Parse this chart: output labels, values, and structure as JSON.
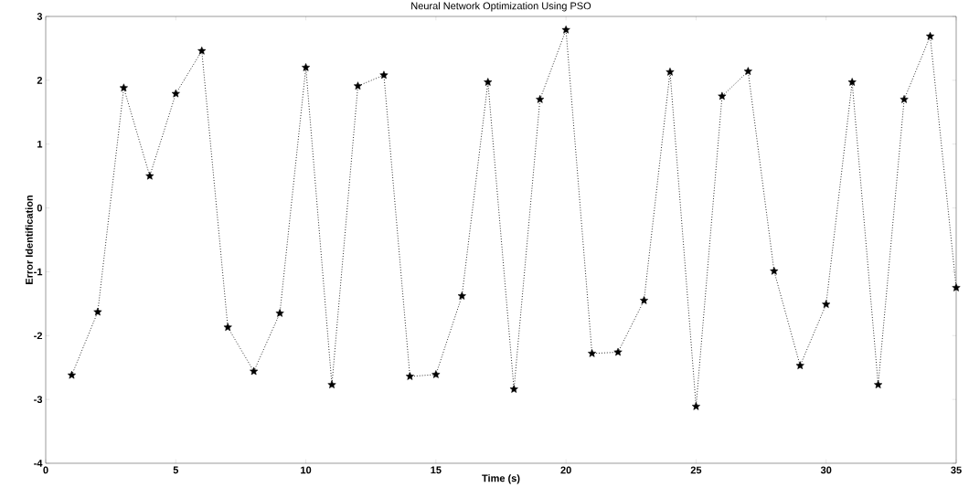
{
  "chart_data": {
    "type": "line",
    "title": "Neural Network Optimization Using PSO",
    "xlabel": "Time (s)",
    "ylabel": "Error Identification",
    "x": [
      1,
      2,
      3,
      4,
      5,
      6,
      7,
      8,
      9,
      10,
      11,
      12,
      13,
      14,
      15,
      16,
      17,
      18,
      19,
      20,
      21,
      22,
      23,
      24,
      25,
      26,
      27,
      28,
      29,
      30,
      31,
      32,
      33,
      34,
      35
    ],
    "values": [
      -2.62,
      -1.63,
      1.88,
      0.5,
      1.79,
      2.46,
      -1.87,
      -2.56,
      -1.65,
      2.2,
      -2.77,
      1.91,
      2.08,
      -2.64,
      -2.61,
      -1.38,
      1.97,
      -2.84,
      1.7,
      2.79,
      -2.28,
      -2.26,
      -1.45,
      2.13,
      -3.11,
      1.75,
      2.14,
      -0.99,
      -2.47,
      -1.51,
      1.97,
      -2.77,
      1.7,
      2.69,
      -1.25
    ],
    "color": "#000000",
    "marker": "star",
    "line_style": "dotted",
    "xlim": [
      0,
      35
    ],
    "xticks": [
      0,
      5,
      10,
      15,
      20,
      25,
      30,
      35
    ],
    "ylim": [
      -4,
      3
    ],
    "yticks": [
      -4,
      -3,
      -2,
      -1,
      0,
      1,
      2,
      3
    ],
    "grid": false
  }
}
